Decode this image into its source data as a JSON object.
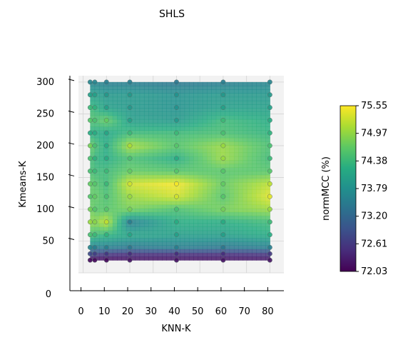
{
  "chart_data": {
    "type": "heatmap",
    "title": "SHLS",
    "xlabel": "KNN-K",
    "ylabel": "Kmeans-K",
    "colorbar_label": "normMCC (%)",
    "x_ticks": [
      0,
      10,
      20,
      30,
      40,
      50,
      60,
      70,
      80
    ],
    "y_ticks": [
      0,
      50,
      100,
      150,
      200,
      250,
      300
    ],
    "xlim": [
      -2,
      86
    ],
    "ylim": [
      0,
      310
    ],
    "colorbar_ticks": [
      "72.03",
      "72.61",
      "73.20",
      "73.79",
      "74.38",
      "74.97",
      "75.55"
    ],
    "value_range": [
      72.03,
      75.55
    ],
    "colormap": "viridis",
    "grid": true,
    "x": [
      3,
      5,
      10,
      20,
      40,
      60,
      80
    ],
    "y": [
      20,
      30,
      40,
      60,
      80,
      100,
      120,
      140,
      160,
      180,
      200,
      220,
      240,
      260,
      280,
      300
    ],
    "values": [
      [
        72.1,
        72.1,
        72.1,
        72.2,
        72.2,
        72.2,
        72.2
      ],
      [
        72.8,
        72.7,
        72.6,
        72.5,
        72.5,
        72.5,
        72.6
      ],
      [
        73.6,
        73.5,
        73.5,
        73.4,
        73.5,
        73.4,
        73.5
      ],
      [
        74.5,
        74.4,
        74.3,
        74.1,
        74.0,
        74.0,
        74.2
      ],
      [
        75.0,
        74.9,
        75.2,
        73.5,
        74.2,
        74.2,
        74.4
      ],
      [
        74.8,
        74.6,
        74.6,
        74.8,
        74.5,
        74.8,
        75.0
      ],
      [
        74.6,
        74.7,
        74.5,
        75.0,
        75.3,
        74.6,
        75.4
      ],
      [
        74.7,
        74.6,
        74.4,
        75.3,
        75.5,
        74.7,
        75.2
      ],
      [
        74.5,
        74.4,
        74.4,
        74.7,
        74.6,
        74.6,
        74.6
      ],
      [
        74.5,
        74.3,
        74.2,
        74.5,
        74.2,
        75.0,
        74.4
      ],
      [
        74.8,
        74.5,
        74.2,
        75.1,
        74.6,
        75.0,
        74.5
      ],
      [
        74.2,
        74.2,
        74.1,
        74.4,
        74.4,
        74.5,
        74.3
      ],
      [
        74.6,
        74.5,
        74.7,
        74.0,
        73.9,
        74.4,
        74.2
      ],
      [
        74.4,
        74.3,
        74.0,
        73.9,
        73.8,
        74.0,
        74.0
      ],
      [
        74.0,
        74.0,
        73.9,
        73.9,
        73.8,
        73.9,
        73.9
      ],
      [
        73.6,
        73.6,
        73.5,
        73.5,
        73.4,
        73.5,
        73.6
      ]
    ]
  }
}
